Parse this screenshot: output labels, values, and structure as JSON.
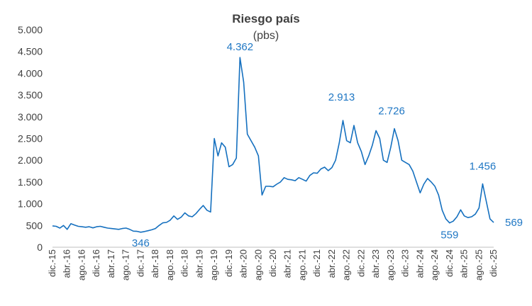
{
  "chart_data": {
    "type": "line",
    "title": "Riesgo país",
    "subtitle": "(pbs)",
    "ylim": [
      0,
      5000
    ],
    "yticks": [
      {
        "value": 0,
        "label": "0"
      },
      {
        "value": 500,
        "label": "500"
      },
      {
        "value": 1000,
        "label": "1.000"
      },
      {
        "value": 1500,
        "label": "1.500"
      },
      {
        "value": 2000,
        "label": "2.000"
      },
      {
        "value": 2500,
        "label": "2.500"
      },
      {
        "value": 3000,
        "label": "3.000"
      },
      {
        "value": 3500,
        "label": "3.500"
      },
      {
        "value": 4000,
        "label": "4.000"
      },
      {
        "value": 4500,
        "label": "4.500"
      },
      {
        "value": 5000,
        "label": "5.000"
      }
    ],
    "x_ticks": [
      "dic.-15",
      "abr.-16",
      "ago.-16",
      "dic.-16",
      "abr.-17",
      "ago.-17",
      "dic.-17",
      "abr.-18",
      "ago.-18",
      "dic.-18",
      "abr.-19",
      "ago.-19",
      "dic.-19",
      "abr.-20",
      "ago.-20",
      "dic.-20",
      "abr.-21",
      "ago.-21",
      "dic.-21",
      "abr.-22",
      "ago.-22",
      "dic.-22",
      "abr.-23",
      "ago.-23",
      "dic.-23",
      "abr.-24",
      "ago.-24",
      "dic.-24",
      "abr.-25",
      "ago.-25",
      "dic.-25"
    ],
    "grid": false,
    "legend": "none",
    "series": [
      {
        "color": "#1570bf",
        "points": [
          [
            "2015-12",
            490
          ],
          [
            "2016-01",
            480
          ],
          [
            "2016-02",
            440
          ],
          [
            "2016-03",
            500
          ],
          [
            "2016-04",
            410
          ],
          [
            "2016-05",
            540
          ],
          [
            "2016-06",
            510
          ],
          [
            "2016-07",
            480
          ],
          [
            "2016-08",
            470
          ],
          [
            "2016-09",
            460
          ],
          [
            "2016-10",
            470
          ],
          [
            "2016-11",
            445
          ],
          [
            "2016-12",
            470
          ],
          [
            "2017-01",
            480
          ],
          [
            "2017-02",
            460
          ],
          [
            "2017-03",
            440
          ],
          [
            "2017-04",
            430
          ],
          [
            "2017-05",
            420
          ],
          [
            "2017-06",
            410
          ],
          [
            "2017-07",
            430
          ],
          [
            "2017-08",
            440
          ],
          [
            "2017-09",
            410
          ],
          [
            "2017-10",
            370
          ],
          [
            "2017-11",
            365
          ],
          [
            "2017-12",
            346
          ],
          [
            "2018-01",
            360
          ],
          [
            "2018-02",
            380
          ],
          [
            "2018-03",
            400
          ],
          [
            "2018-04",
            430
          ],
          [
            "2018-05",
            500
          ],
          [
            "2018-06",
            560
          ],
          [
            "2018-07",
            570
          ],
          [
            "2018-08",
            620
          ],
          [
            "2018-09",
            720
          ],
          [
            "2018-10",
            640
          ],
          [
            "2018-11",
            690
          ],
          [
            "2018-12",
            790
          ],
          [
            "2019-01",
            720
          ],
          [
            "2019-02",
            700
          ],
          [
            "2019-03",
            770
          ],
          [
            "2019-04",
            870
          ],
          [
            "2019-05",
            960
          ],
          [
            "2019-06",
            850
          ],
          [
            "2019-07",
            810
          ],
          [
            "2019-08",
            2500
          ],
          [
            "2019-09",
            2100
          ],
          [
            "2019-10",
            2400
          ],
          [
            "2019-11",
            2300
          ],
          [
            "2019-12",
            1850
          ],
          [
            "2020-01",
            1900
          ],
          [
            "2020-02",
            2050
          ],
          [
            "2020-03",
            4362
          ],
          [
            "2020-04",
            3800
          ],
          [
            "2020-05",
            2600
          ],
          [
            "2020-06",
            2450
          ],
          [
            "2020-07",
            2300
          ],
          [
            "2020-08",
            2100
          ],
          [
            "2020-09",
            1200
          ],
          [
            "2020-10",
            1400
          ],
          [
            "2020-11",
            1400
          ],
          [
            "2020-12",
            1390
          ],
          [
            "2021-01",
            1450
          ],
          [
            "2021-02",
            1500
          ],
          [
            "2021-03",
            1600
          ],
          [
            "2021-04",
            1560
          ],
          [
            "2021-05",
            1550
          ],
          [
            "2021-06",
            1530
          ],
          [
            "2021-07",
            1600
          ],
          [
            "2021-08",
            1560
          ],
          [
            "2021-09",
            1520
          ],
          [
            "2021-10",
            1650
          ],
          [
            "2021-11",
            1710
          ],
          [
            "2021-12",
            1700
          ],
          [
            "2022-01",
            1800
          ],
          [
            "2022-02",
            1840
          ],
          [
            "2022-03",
            1760
          ],
          [
            "2022-04",
            1830
          ],
          [
            "2022-05",
            2000
          ],
          [
            "2022-06",
            2400
          ],
          [
            "2022-07",
            2913
          ],
          [
            "2022-08",
            2450
          ],
          [
            "2022-09",
            2400
          ],
          [
            "2022-10",
            2800
          ],
          [
            "2022-11",
            2400
          ],
          [
            "2022-12",
            2200
          ],
          [
            "2023-01",
            1900
          ],
          [
            "2023-02",
            2100
          ],
          [
            "2023-03",
            2350
          ],
          [
            "2023-04",
            2680
          ],
          [
            "2023-05",
            2500
          ],
          [
            "2023-06",
            2000
          ],
          [
            "2023-07",
            1950
          ],
          [
            "2023-08",
            2300
          ],
          [
            "2023-09",
            2726
          ],
          [
            "2023-10",
            2450
          ],
          [
            "2023-11",
            2000
          ],
          [
            "2023-12",
            1950
          ],
          [
            "2024-01",
            1900
          ],
          [
            "2024-02",
            1750
          ],
          [
            "2024-03",
            1500
          ],
          [
            "2024-04",
            1250
          ],
          [
            "2024-05",
            1450
          ],
          [
            "2024-06",
            1580
          ],
          [
            "2024-07",
            1500
          ],
          [
            "2024-08",
            1400
          ],
          [
            "2024-09",
            1200
          ],
          [
            "2024-10",
            850
          ],
          [
            "2024-11",
            650
          ],
          [
            "2024-12",
            559
          ],
          [
            "2025-01",
            600
          ],
          [
            "2025-02",
            700
          ],
          [
            "2025-03",
            860
          ],
          [
            "2025-04",
            720
          ],
          [
            "2025-05",
            680
          ],
          [
            "2025-06",
            700
          ],
          [
            "2025-07",
            760
          ],
          [
            "2025-08",
            900
          ],
          [
            "2025-09",
            1456
          ],
          [
            "2025-10",
            1050
          ],
          [
            "2025-11",
            650
          ],
          [
            "2025-12",
            569
          ]
        ]
      }
    ],
    "annotations": [
      {
        "text": "4.362",
        "date": "2020-03",
        "value": 4362
      },
      {
        "text": "346",
        "date": "2017-12",
        "value": 346
      },
      {
        "text": "2.913",
        "date": "2022-07",
        "value": 2913
      },
      {
        "text": "2.726",
        "date": "2023-09",
        "value": 2726
      },
      {
        "text": "559",
        "date": "2024-12",
        "value": 559
      },
      {
        "text": "1.456",
        "date": "2025-09",
        "value": 1456
      },
      {
        "text": "569",
        "date": "2025-12",
        "value": 569
      }
    ]
  }
}
